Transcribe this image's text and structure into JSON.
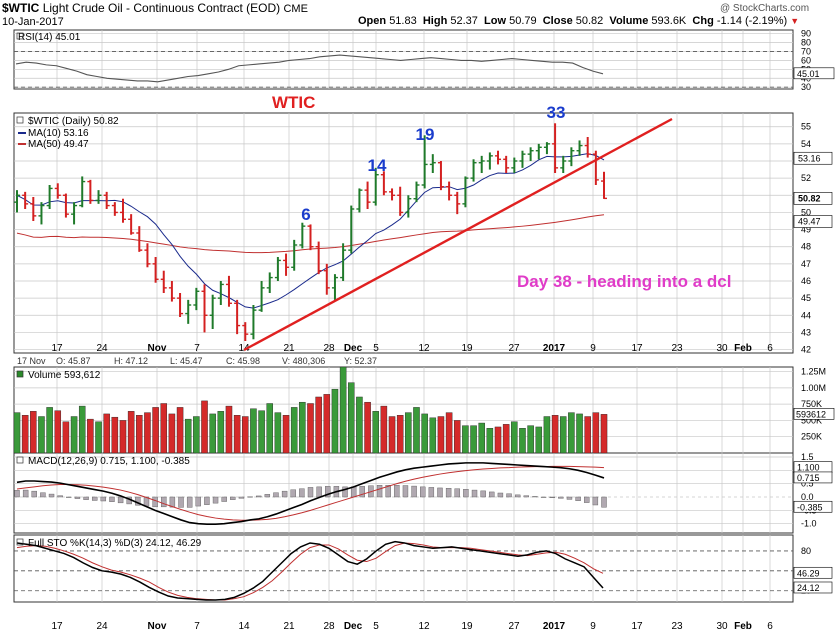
{
  "header": {
    "symbol": "$WTIC",
    "name": "Light Crude Oil - Continuous Contract (EOD)",
    "exchange": "CME",
    "date": "10-Jan-2017",
    "open_label": "Open",
    "open": "51.83",
    "high_label": "High",
    "high": "52.37",
    "low_label": "Low",
    "low": "50.79",
    "close_label": "Close",
    "close": "50.82",
    "volume_label": "Volume",
    "volume": "593.6K",
    "chg_label": "Chg",
    "chg": "-1.14 (-2.19%)",
    "watermark": "@ StockCharts.com"
  },
  "colors": {
    "up": "#1f7a2a",
    "down": "#d42020",
    "ma10": "#1a2a8c",
    "ma50": "#c03030",
    "trendline": "#e02020",
    "annotation_blue": "#1a3ccc",
    "annotation_pink": "#e03cc8",
    "panel_border": "#333333",
    "grid": "#c8c8c8"
  },
  "chart_data": [
    {
      "type": "line",
      "panel": "rsi",
      "legend": "RSI(14) 45.01",
      "y_ticks": [
        30,
        40,
        50,
        60,
        70,
        80,
        90
      ],
      "ylim": [
        28,
        94
      ],
      "levels": [
        30,
        70
      ],
      "last_value_label": "45.01",
      "values": [
        56,
        58,
        57,
        55,
        54,
        51,
        48,
        44,
        42,
        40,
        39,
        38,
        37,
        37,
        36,
        38,
        40,
        42,
        43,
        45,
        47,
        50,
        54,
        55,
        56,
        57,
        58,
        60,
        61,
        62,
        64,
        65,
        66,
        65,
        64,
        63,
        62,
        61,
        60,
        61,
        62,
        63,
        62,
        61,
        60,
        60,
        59,
        60,
        61,
        62,
        61,
        60,
        59,
        58,
        58,
        57,
        52,
        48,
        45
      ]
    },
    {
      "type": "candlestick",
      "panel": "price",
      "legend": [
        {
          "name": "$WTIC (Daily)",
          "value": "50.82"
        },
        {
          "name": "MA(10)",
          "value": "53.16"
        },
        {
          "name": "MA(50)",
          "value": "49.47"
        }
      ],
      "y_ticks": [
        42,
        43,
        44,
        45,
        46,
        47,
        48,
        49,
        50,
        51,
        52,
        53,
        54,
        55
      ],
      "ylim": [
        41.8,
        55.8
      ],
      "value_labels": [
        "53.16",
        "50.82",
        "49.47"
      ],
      "ohlc": [
        [
          50.6,
          51.3,
          50.0,
          51.0
        ],
        [
          51.0,
          51.2,
          50.2,
          50.5
        ],
        [
          50.5,
          50.9,
          49.5,
          49.8
        ],
        [
          49.8,
          50.6,
          49.3,
          50.4
        ],
        [
          50.4,
          51.6,
          50.2,
          51.4
        ],
        [
          51.4,
          51.7,
          50.8,
          51.0
        ],
        [
          51.0,
          51.1,
          49.7,
          49.9
        ],
        [
          49.9,
          50.6,
          49.3,
          50.4
        ],
        [
          50.4,
          52.1,
          50.3,
          51.8
        ],
        [
          51.8,
          51.9,
          50.5,
          50.7
        ],
        [
          50.7,
          51.3,
          50.5,
          51.0
        ],
        [
          51.0,
          51.2,
          50.2,
          50.4
        ],
        [
          50.4,
          50.6,
          49.8,
          50.0
        ],
        [
          50.0,
          50.8,
          49.4,
          49.6
        ],
        [
          49.6,
          49.9,
          48.7,
          48.8
        ],
        [
          48.8,
          49.2,
          47.7,
          47.8
        ],
        [
          47.8,
          48.2,
          46.8,
          47.0
        ],
        [
          47.0,
          47.4,
          45.9,
          46.1
        ],
        [
          46.1,
          46.6,
          45.3,
          45.6
        ],
        [
          45.6,
          46.0,
          44.8,
          45.0
        ],
        [
          45.0,
          45.3,
          43.9,
          44.1
        ],
        [
          44.1,
          44.9,
          43.5,
          44.6
        ],
        [
          44.6,
          45.6,
          44.3,
          45.4
        ],
        [
          45.4,
          45.8,
          43.0,
          44.0
        ],
        [
          44.0,
          45.2,
          43.2,
          45.0
        ],
        [
          45.0,
          46.0,
          44.6,
          45.8
        ],
        [
          45.8,
          46.3,
          44.5,
          44.7
        ],
        [
          44.7,
          44.9,
          42.9,
          43.4
        ],
        [
          43.4,
          43.6,
          42.5,
          42.9
        ],
        [
          42.9,
          44.6,
          42.6,
          44.3
        ],
        [
          44.3,
          46.0,
          44.2,
          45.6
        ],
        [
          45.6,
          46.5,
          45.3,
          46.2
        ],
        [
          46.2,
          47.4,
          46.0,
          47.2
        ],
        [
          47.2,
          47.6,
          46.3,
          46.8
        ],
        [
          46.8,
          48.4,
          46.6,
          48.1
        ],
        [
          48.1,
          49.4,
          47.9,
          49.2
        ],
        [
          49.2,
          49.3,
          47.8,
          48.0
        ],
        [
          48.0,
          48.3,
          46.4,
          46.6
        ],
        [
          46.6,
          47.0,
          45.2,
          45.6
        ],
        [
          45.6,
          46.4,
          44.9,
          46.2
        ],
        [
          46.2,
          48.2,
          46.0,
          47.8
        ],
        [
          47.8,
          50.4,
          47.6,
          50.2
        ],
        [
          50.2,
          51.4,
          50.0,
          51.3
        ],
        [
          51.3,
          51.8,
          50.2,
          50.6
        ],
        [
          50.6,
          52.6,
          50.4,
          52.2
        ],
        [
          52.2,
          52.4,
          51.0,
          51.2
        ],
        [
          51.2,
          51.4,
          50.7,
          51.0
        ],
        [
          51.0,
          51.5,
          49.8,
          50.0
        ],
        [
          50.0,
          51.0,
          49.7,
          50.8
        ],
        [
          50.8,
          51.8,
          50.6,
          51.6
        ],
        [
          51.6,
          54.5,
          51.4,
          52.8
        ],
        [
          52.8,
          53.4,
          52.3,
          52.9
        ],
        [
          52.9,
          53.0,
          51.3,
          51.5
        ],
        [
          51.5,
          51.8,
          50.7,
          51.0
        ],
        [
          51.0,
          51.2,
          49.9,
          50.5
        ],
        [
          50.5,
          52.1,
          50.3,
          52.0
        ],
        [
          52.0,
          53.1,
          51.8,
          52.9
        ],
        [
          52.9,
          53.3,
          52.3,
          53.0
        ],
        [
          53.0,
          53.5,
          52.5,
          53.3
        ],
        [
          53.3,
          53.6,
          52.8,
          53.1
        ],
        [
          53.1,
          53.3,
          52.3,
          52.6
        ],
        [
          52.6,
          53.2,
          52.3,
          53.0
        ],
        [
          53.0,
          53.6,
          52.6,
          53.4
        ],
        [
          53.4,
          53.8,
          53.0,
          53.6
        ],
        [
          53.6,
          54.0,
          53.1,
          53.8
        ],
        [
          53.8,
          54.1,
          53.4,
          54.0
        ],
        [
          54.0,
          55.2,
          52.3,
          52.6
        ],
        [
          52.6,
          53.3,
          52.3,
          53.0
        ],
        [
          53.0,
          53.8,
          52.7,
          53.6
        ],
        [
          53.6,
          54.2,
          53.3,
          53.9
        ],
        [
          53.9,
          54.4,
          53.2,
          53.4
        ],
        [
          53.4,
          53.6,
          51.6,
          51.9
        ],
        [
          51.83,
          52.37,
          50.79,
          50.82
        ]
      ],
      "annotations": [
        {
          "text": "WTIC",
          "color": "red"
        },
        {
          "text": "6",
          "color": "blue"
        },
        {
          "text": "14",
          "color": "blue"
        },
        {
          "text": "19",
          "color": "blue"
        },
        {
          "text": "33",
          "color": "blue"
        },
        {
          "text": "Day 38 - heading into a dcl",
          "color": "pink"
        }
      ],
      "info_bar": {
        "date": "17 Nov",
        "o": "O: 45.87",
        "h": "H: 47.12",
        "l": "L: 45.47",
        "c": "C: 45.98",
        "v": "V: 480,306",
        "y": "Y: 52.37"
      }
    },
    {
      "type": "bar",
      "panel": "volume",
      "legend": "Volume 593,612",
      "y_ticks": [
        "250K",
        "500K",
        "750K",
        "1.00M",
        "1.25M"
      ],
      "y_tick_values": [
        250000,
        500000,
        750000,
        1000000,
        1250000
      ],
      "ylim": [
        0,
        1320000
      ],
      "last_value_label": "593612",
      "values": [
        620000,
        580000,
        640000,
        560000,
        700000,
        650000,
        480000,
        560000,
        720000,
        520000,
        480000,
        600000,
        550000,
        500000,
        640000,
        580000,
        620000,
        700000,
        760000,
        600000,
        700000,
        520000,
        560000,
        800000,
        600000,
        640000,
        720000,
        580000,
        560000,
        680000,
        650000,
        760000,
        620000,
        580000,
        700000,
        780000,
        760000,
        860000,
        900000,
        980000,
        1320000,
        1080000,
        860000,
        780000,
        640000,
        720000,
        560000,
        580000,
        620000,
        700000,
        600000,
        540000,
        560000,
        620000,
        500000,
        420000,
        420000,
        460000,
        380000,
        400000,
        440000,
        480000,
        380000,
        420000,
        400000,
        560000,
        580000,
        560000,
        620000,
        600000,
        560000,
        620000,
        593612
      ]
    },
    {
      "type": "line",
      "panel": "macd",
      "legend": "MACD(12,26,9) 0.715, 1.100, -0.385",
      "y_ticks": [
        -1.0,
        -0.5,
        0.0,
        0.5,
        1.0,
        1.5
      ],
      "ylim": [
        -1.35,
        1.65
      ],
      "value_labels": [
        "1.100",
        "0.715",
        "-0.385"
      ],
      "macd": [
        0.55,
        0.6,
        0.6,
        0.58,
        0.56,
        0.52,
        0.46,
        0.4,
        0.34,
        0.28,
        0.22,
        0.14,
        0.04,
        -0.08,
        -0.22,
        -0.36,
        -0.5,
        -0.62,
        -0.74,
        -0.86,
        -0.96,
        -1.0,
        -1.02,
        -1.02,
        -1.0,
        -0.96,
        -0.92,
        -0.86,
        -0.82,
        -0.74,
        -0.64,
        -0.52,
        -0.4,
        -0.28,
        -0.14,
        -0.02,
        0.1,
        0.2,
        0.28,
        0.38,
        0.5,
        0.62,
        0.74,
        0.84,
        0.94,
        1.02,
        1.08,
        1.12,
        1.16,
        1.2,
        1.24,
        1.26,
        1.28,
        1.28,
        1.28,
        1.26,
        1.24,
        1.22,
        1.2,
        1.18,
        1.16,
        1.14,
        1.12,
        1.1,
        1.06,
        1.0,
        0.92,
        0.82,
        0.715
      ],
      "signal": [
        0.3,
        0.34,
        0.38,
        0.42,
        0.45,
        0.47,
        0.47,
        0.46,
        0.44,
        0.41,
        0.37,
        0.32,
        0.26,
        0.18,
        0.09,
        -0.02,
        -0.13,
        -0.25,
        -0.36,
        -0.47,
        -0.57,
        -0.66,
        -0.73,
        -0.79,
        -0.83,
        -0.86,
        -0.87,
        -0.87,
        -0.86,
        -0.84,
        -0.8,
        -0.74,
        -0.67,
        -0.59,
        -0.5,
        -0.4,
        -0.3,
        -0.2,
        -0.1,
        0.0,
        0.1,
        0.2,
        0.3,
        0.4,
        0.5,
        0.59,
        0.67,
        0.74,
        0.8,
        0.86,
        0.91,
        0.95,
        0.99,
        1.02,
        1.05,
        1.07,
        1.09,
        1.1,
        1.12,
        1.13,
        1.14,
        1.14,
        1.15,
        1.15,
        1.15,
        1.14,
        1.13,
        1.12,
        1.1
      ]
    },
    {
      "type": "line",
      "panel": "stochastic",
      "legend": "Full STO %K(14,3) %D(3) 24.12, 46.29",
      "y_ticks": [
        20,
        50,
        80
      ],
      "ylim": [
        3,
        104
      ],
      "levels": [
        20,
        50,
        80
      ],
      "value_labels": [
        "46.29",
        "24.12"
      ],
      "k": [
        92,
        90,
        88,
        84,
        80,
        76,
        70,
        62,
        55,
        50,
        48,
        45,
        40,
        33,
        25,
        18,
        12,
        9,
        8,
        7,
        6,
        6,
        7,
        10,
        16,
        24,
        34,
        48,
        62,
        76,
        86,
        92,
        90,
        84,
        74,
        64,
        60,
        68,
        80,
        90,
        94,
        92,
        88,
        86,
        84,
        85,
        86,
        84,
        82,
        80,
        78,
        76,
        74,
        72,
        74,
        78,
        80,
        76,
        68,
        62,
        56,
        40,
        24.12
      ],
      "d": [
        85,
        87,
        88,
        87,
        84,
        80,
        75,
        69,
        62,
        56,
        51,
        48,
        44,
        39,
        33,
        25,
        18,
        13,
        10,
        8,
        7,
        6,
        6,
        8,
        11,
        17,
        25,
        35,
        48,
        62,
        75,
        85,
        89,
        89,
        83,
        74,
        66,
        64,
        69,
        79,
        88,
        92,
        91,
        89,
        86,
        85,
        85,
        85,
        84,
        82,
        80,
        78,
        76,
        74,
        73,
        75,
        77,
        78,
        75,
        69,
        62,
        53,
        46.29
      ]
    }
  ],
  "x_axis": {
    "price_ticks": [
      "17",
      "24",
      "Nov",
      "7",
      "14",
      "21",
      "28",
      "Dec",
      "5",
      "12",
      "19",
      "27",
      "2017",
      "9",
      "17",
      "23",
      "30",
      "Feb",
      "6"
    ],
    "bottom_ticks": [
      "17",
      "24",
      "Nov",
      "7",
      "14",
      "21",
      "28",
      "Dec",
      "5",
      "12",
      "19",
      "27",
      "2017",
      "9",
      "17",
      "23",
      "30",
      "Feb",
      "6"
    ]
  }
}
